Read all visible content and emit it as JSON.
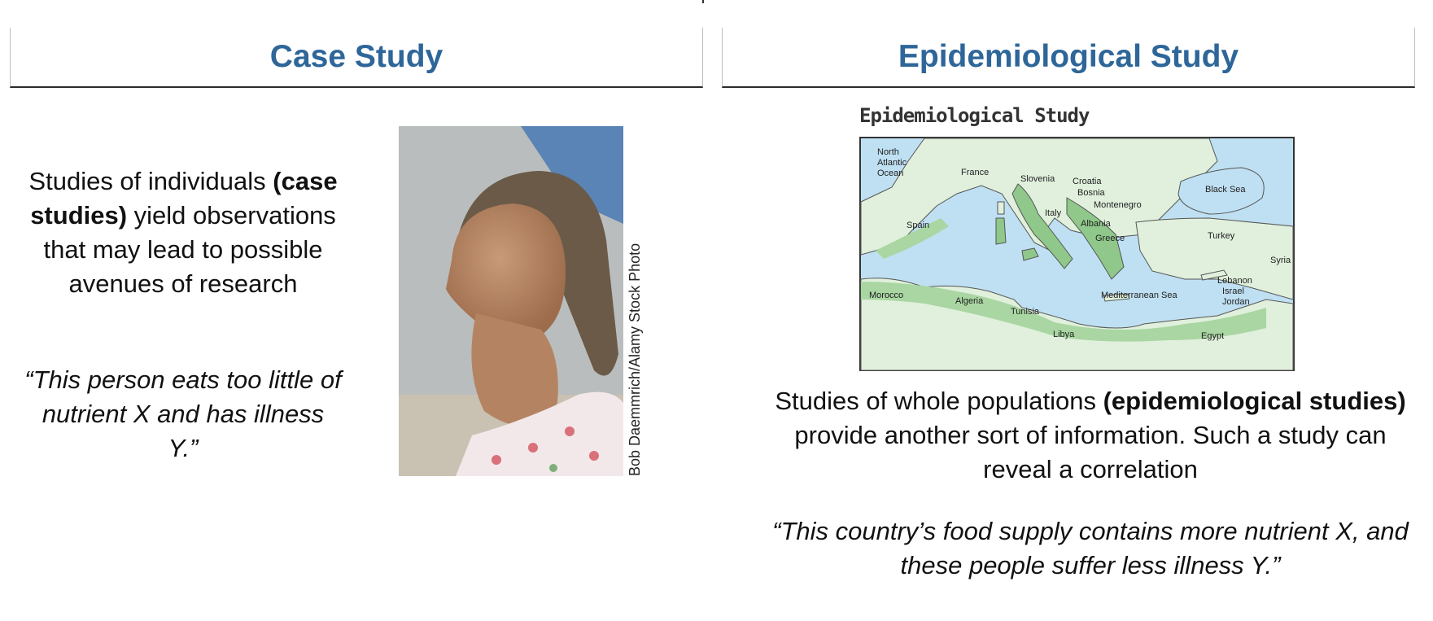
{
  "case_study": {
    "heading": "Case Study",
    "desc_pre": "Studies of individuals",
    "desc_bold": "(case studies)",
    "desc_post": "yield observations that may lead to possible avenues of research",
    "quote": "“This person eats too little of nutrient X and has illness Y.”",
    "photo_credit": "Bob Daemmrich/Alamy Stock Photo"
  },
  "epi_study": {
    "heading": "Epidemiological Study",
    "map_title": "Epidemiological Study",
    "map_labels": {
      "north_atlantic": "North",
      "north_atlantic_2": "Atlantic",
      "north_atlantic_3": "Ocean",
      "france": "France",
      "slovenia": "Slovenia",
      "croatia": "Croatia",
      "bosnia": "Bosnia",
      "montenegro": "Montenegro",
      "albania": "Albania",
      "greece": "Greece",
      "italy": "Italy",
      "spain": "Spain",
      "black_sea": "Black Sea",
      "turkey": "Turkey",
      "syria": "Syria",
      "lebanon": "Lebanon",
      "israel": "Israel",
      "jordan": "Jordan",
      "morocco": "Morocco",
      "algeria": "Algeria",
      "tunisia": "Tunisia",
      "libya": "Libya",
      "egypt": "Egypt",
      "mediterranean": "Mediterranean Sea"
    },
    "desc_pre": "Studies of whole populations",
    "desc_bold": "(epidemiological studies)",
    "desc_post": "provide another sort of information. Such a study can reveal a correlation",
    "quote": "“This country’s food supply contains more nutrient X, and these people suffer less illness Y.”"
  },
  "colors": {
    "heading": "#2e6699",
    "sea": "#bfe0f2",
    "land": "#e0f0dc",
    "highlight": "#8fc88a"
  }
}
